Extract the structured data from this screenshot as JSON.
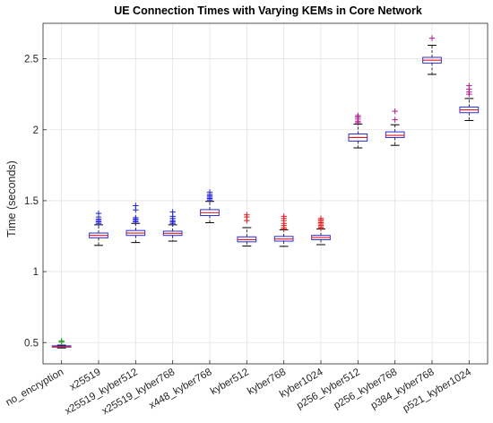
{
  "chart_data": {
    "type": "boxplot",
    "title": "UE Connection Times with Varying KEMs in Core Network",
    "xlabel": "",
    "ylabel": "Time (seconds)",
    "ylim": [
      0.35,
      2.75
    ],
    "yticks": [
      0.5,
      1,
      1.5,
      2,
      2.5
    ],
    "ytick_labels": [
      "0.5",
      "1",
      "1.5",
      "2",
      "2.5"
    ],
    "grid": true,
    "categories": [
      "no_encryption",
      "x25519",
      "x25519_kyber512",
      "x25519_kyber768",
      "x448_kyber768",
      "kyber512",
      "kyber768",
      "kyber1024",
      "p256_kyber512",
      "p256_kyber768",
      "p384_kyber768",
      "p521_kyber1024"
    ],
    "boxes": [
      {
        "q1": 0.468,
        "median": 0.472,
        "q3": 0.477,
        "whisker_low": 0.462,
        "whisker_high": 0.482,
        "outliers": [
          0.512,
          0.503
        ],
        "color": "#1a9a1a"
      },
      {
        "q1": 1.238,
        "median": 1.255,
        "q3": 1.272,
        "whisker_low": 1.185,
        "whisker_high": 1.33,
        "outliers": [
          1.34,
          1.35,
          1.36,
          1.37,
          1.385,
          1.41
        ],
        "color": "#1f1fd6"
      },
      {
        "q1": 1.255,
        "median": 1.272,
        "q3": 1.29,
        "whisker_low": 1.205,
        "whisker_high": 1.34,
        "outliers": [
          1.35,
          1.36,
          1.37,
          1.38,
          1.435,
          1.465
        ],
        "color": "#1f1fd6"
      },
      {
        "q1": 1.255,
        "median": 1.27,
        "q3": 1.285,
        "whisker_low": 1.215,
        "whisker_high": 1.33,
        "outliers": [
          1.34,
          1.35,
          1.36,
          1.375,
          1.39,
          1.42
        ],
        "color": "#1f1fd6"
      },
      {
        "q1": 1.395,
        "median": 1.415,
        "q3": 1.437,
        "whisker_low": 1.345,
        "whisker_high": 1.495,
        "outliers": [
          1.505,
          1.515,
          1.525,
          1.535,
          1.545,
          1.56
        ],
        "color": "#1f1fd6"
      },
      {
        "q1": 1.21,
        "median": 1.225,
        "q3": 1.245,
        "whisker_low": 1.18,
        "whisker_high": 1.31,
        "outliers": [
          1.36,
          1.385,
          1.4
        ],
        "color": "#e01b1b"
      },
      {
        "q1": 1.215,
        "median": 1.23,
        "q3": 1.248,
        "whisker_low": 1.178,
        "whisker_high": 1.295,
        "outliers": [
          1.3,
          1.31,
          1.325,
          1.34,
          1.36,
          1.375,
          1.39
        ],
        "color": "#e01b1b"
      },
      {
        "q1": 1.225,
        "median": 1.24,
        "q3": 1.255,
        "whisker_low": 1.19,
        "whisker_high": 1.3,
        "outliers": [
          1.305,
          1.315,
          1.325,
          1.335,
          1.345,
          1.355,
          1.365,
          1.375
        ],
        "color": "#e01b1b"
      },
      {
        "q1": 1.92,
        "median": 1.945,
        "q3": 1.97,
        "whisker_low": 1.872,
        "whisker_high": 2.04,
        "outliers": [
          2.05,
          2.06,
          2.075,
          2.09,
          2.1
        ],
        "color": "#b0188f"
      },
      {
        "q1": 1.945,
        "median": 1.96,
        "q3": 1.985,
        "whisker_low": 1.89,
        "whisker_high": 2.035,
        "outliers": [
          2.07,
          2.13
        ],
        "color": "#b0188f"
      },
      {
        "q1": 2.47,
        "median": 2.49,
        "q3": 2.51,
        "whisker_low": 2.39,
        "whisker_high": 2.595,
        "outliers": [
          2.645
        ],
        "color": "#b0188f"
      },
      {
        "q1": 2.12,
        "median": 2.14,
        "q3": 2.16,
        "whisker_low": 2.065,
        "whisker_high": 2.22,
        "outliers": [
          2.25,
          2.265,
          2.285,
          2.31
        ],
        "color": "#b0188f"
      }
    ],
    "box_edge_color": "#2b2bd6",
    "median_color": "#e01b1b",
    "whisker_color": "#000000"
  }
}
